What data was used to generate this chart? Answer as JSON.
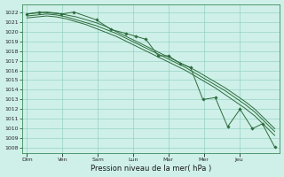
{
  "title": "",
  "xlabel": "Pression niveau de la mer( hPa )",
  "background_color": "#cef0e8",
  "plot_bg_color": "#cef0e8",
  "grid_color": "#88ccbb",
  "line_color": "#2d6b3c",
  "ylim": [
    1007.5,
    1022.8
  ],
  "yticks": [
    1008,
    1009,
    1010,
    1011,
    1012,
    1013,
    1014,
    1015,
    1016,
    1017,
    1018,
    1019,
    1020,
    1021,
    1022
  ],
  "days": [
    "Dim",
    "Ven",
    "Sam",
    "Lun",
    "Mar",
    "Mer",
    "Jeu"
  ],
  "tick_positions": [
    0.0,
    0.143,
    0.286,
    0.429,
    0.571,
    0.714,
    0.857
  ],
  "smooth1_x": [
    0.0,
    0.04,
    0.08,
    0.12,
    0.16,
    0.2,
    0.24,
    0.28,
    0.32,
    0.36,
    0.4,
    0.44,
    0.48,
    0.52,
    0.56,
    0.6,
    0.64,
    0.68,
    0.72,
    0.76,
    0.8,
    0.84,
    0.88,
    0.92,
    0.96,
    1.0
  ],
  "smooth1_y": [
    1021.8,
    1021.9,
    1022.0,
    1021.9,
    1021.7,
    1021.5,
    1021.2,
    1020.9,
    1020.5,
    1020.0,
    1019.5,
    1019.0,
    1018.5,
    1018.0,
    1017.5,
    1017.0,
    1016.5,
    1016.0,
    1015.4,
    1014.8,
    1014.2,
    1013.5,
    1012.8,
    1012.0,
    1011.0,
    1010.0
  ],
  "smooth2_x": [
    0.0,
    0.04,
    0.08,
    0.12,
    0.16,
    0.2,
    0.24,
    0.28,
    0.32,
    0.36,
    0.4,
    0.44,
    0.48,
    0.52,
    0.56,
    0.6,
    0.64,
    0.68,
    0.72,
    0.76,
    0.8,
    0.84,
    0.88,
    0.92,
    0.96,
    1.0
  ],
  "smooth2_y": [
    1021.6,
    1021.7,
    1021.8,
    1021.7,
    1021.5,
    1021.2,
    1020.9,
    1020.6,
    1020.2,
    1019.8,
    1019.3,
    1018.8,
    1018.3,
    1017.8,
    1017.3,
    1016.8,
    1016.3,
    1015.7,
    1015.1,
    1014.5,
    1013.9,
    1013.2,
    1012.5,
    1011.7,
    1010.7,
    1009.7
  ],
  "smooth3_x": [
    0.0,
    0.04,
    0.08,
    0.12,
    0.16,
    0.2,
    0.24,
    0.28,
    0.32,
    0.36,
    0.4,
    0.44,
    0.48,
    0.52,
    0.56,
    0.6,
    0.64,
    0.68,
    0.72,
    0.76,
    0.8,
    0.84,
    0.88,
    0.92,
    0.96,
    1.0
  ],
  "smooth3_y": [
    1021.4,
    1021.5,
    1021.6,
    1021.5,
    1021.3,
    1021.0,
    1020.7,
    1020.3,
    1019.9,
    1019.5,
    1019.0,
    1018.5,
    1018.0,
    1017.5,
    1017.0,
    1016.5,
    1016.0,
    1015.4,
    1014.8,
    1014.2,
    1013.5,
    1012.8,
    1012.1,
    1011.3,
    1010.3,
    1009.3
  ],
  "marker_x": [
    0.0,
    0.05,
    0.14,
    0.19,
    0.28,
    0.34,
    0.4,
    0.44,
    0.48,
    0.53,
    0.57,
    0.62,
    0.66,
    0.71,
    0.76,
    0.81,
    0.86,
    0.91,
    0.95,
    1.0
  ],
  "marker_y": [
    1021.8,
    1022.0,
    1021.8,
    1022.0,
    1021.2,
    1020.2,
    1019.8,
    1019.5,
    1019.2,
    1017.5,
    1017.5,
    1016.7,
    1016.3,
    1013.0,
    1013.2,
    1010.2,
    1012.0,
    1010.0,
    1010.5,
    1008.1
  ]
}
